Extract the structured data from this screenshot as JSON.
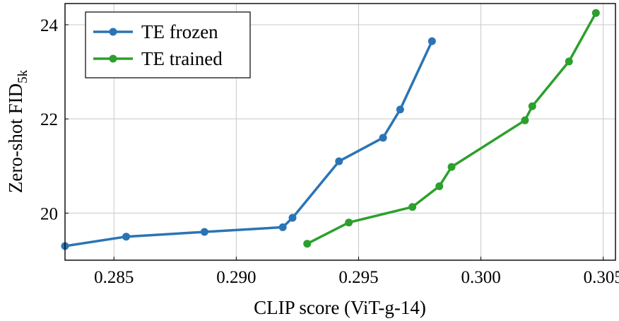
{
  "chart_data": {
    "type": "line",
    "xlabel": "CLIP score (ViT-g-14)",
    "ylabel": "Zero-shot FID",
    "ylabel_subscript": "5k",
    "xlim": [
      0.283,
      0.3055
    ],
    "ylim": [
      19.0,
      24.45
    ],
    "xticks": [
      0.285,
      0.29,
      0.295,
      0.3,
      0.305
    ],
    "xtick_labels": [
      "0.285",
      "0.290",
      "0.295",
      "0.300",
      "0.305"
    ],
    "yticks": [
      20,
      22,
      24
    ],
    "ytick_labels": [
      "20",
      "22",
      "24"
    ],
    "grid": true,
    "legend_position": "top-left",
    "series": [
      {
        "name": "TE frozen",
        "color": "#2a74b5",
        "x": [
          0.283,
          0.2855,
          0.2887,
          0.2919,
          0.2923,
          0.2942,
          0.296,
          0.2967,
          0.298
        ],
        "y": [
          19.3,
          19.5,
          19.6,
          19.7,
          19.9,
          21.1,
          21.6,
          22.2,
          23.65
        ]
      },
      {
        "name": "TE trained",
        "color": "#2ca02c",
        "x": [
          0.2929,
          0.2946,
          0.2972,
          0.2983,
          0.2988,
          0.3018,
          0.3021,
          0.3036,
          0.3047
        ],
        "y": [
          19.35,
          19.8,
          20.13,
          20.57,
          20.98,
          21.97,
          22.27,
          23.22,
          24.25
        ]
      }
    ]
  }
}
